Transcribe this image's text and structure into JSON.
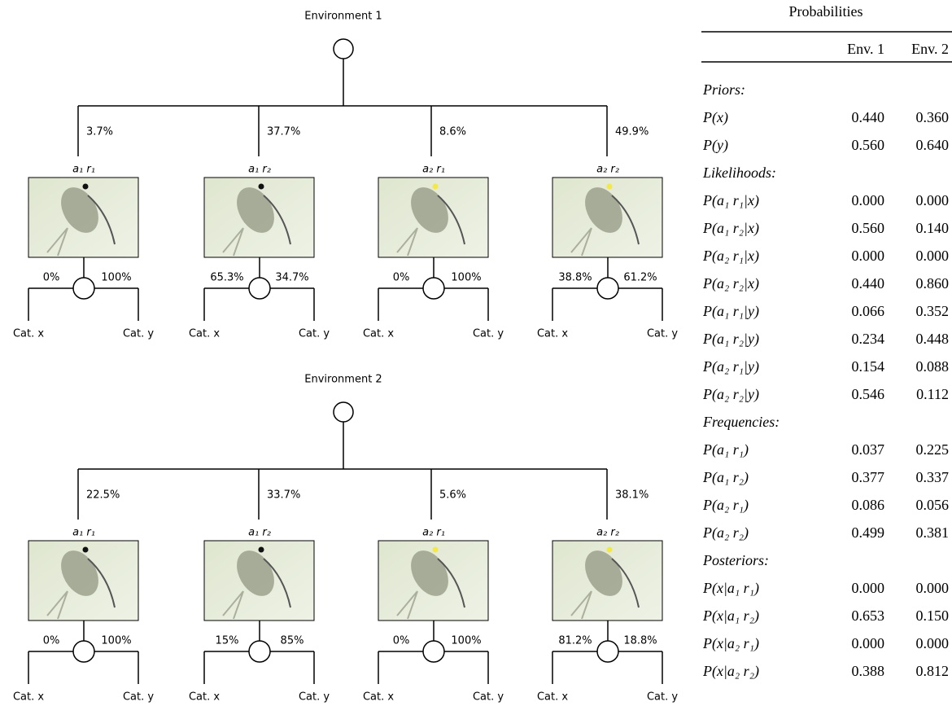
{
  "trees": [
    {
      "title": "Environment 1",
      "branches": [
        {
          "pct": "3.7%",
          "label": "a₁ r₁",
          "split": [
            "0%",
            "100%"
          ]
        },
        {
          "pct": "37.7%",
          "label": "a₁ r₂",
          "split": [
            "65.3%",
            "34.7%"
          ]
        },
        {
          "pct": "8.6%",
          "label": "a₂ r₁",
          "split": [
            "0%",
            "100%"
          ]
        },
        {
          "pct": "49.9%",
          "label": "a₂ r₂",
          "split": [
            "38.8%",
            "61.2%"
          ]
        }
      ]
    },
    {
      "title": "Environment 2",
      "branches": [
        {
          "pct": "22.5%",
          "label": "a₁ r₁",
          "split": [
            "0%",
            "100%"
          ]
        },
        {
          "pct": "33.7%",
          "label": "a₁ r₂",
          "split": [
            "15%",
            "85%"
          ]
        },
        {
          "pct": "5.6%",
          "label": "a₂ r₁",
          "split": [
            "0%",
            "100%"
          ]
        },
        {
          "pct": "38.1%",
          "label": "a₂ r₂",
          "split": [
            "81.2%",
            "18.8%"
          ]
        }
      ]
    }
  ],
  "outcomes": [
    "Cat. x",
    "Cat. y"
  ],
  "table": {
    "title": "Probabilities",
    "columns": [
      "Env. 1",
      "Env. 2"
    ],
    "sections": [
      {
        "heading": "Priors:",
        "rows": [
          {
            "label": "P(x)",
            "values": [
              "0.440",
              "0.360"
            ]
          },
          {
            "label": "P(y)",
            "values": [
              "0.560",
              "0.640"
            ]
          }
        ]
      },
      {
        "heading": "Likelihoods:",
        "rows": [
          {
            "label": "P(a₁ r₁|x)",
            "values": [
              "0.000",
              "0.000"
            ]
          },
          {
            "label": "P(a₁ r₂|x)",
            "values": [
              "0.560",
              "0.140"
            ]
          },
          {
            "label": "P(a₂ r₁|x)",
            "values": [
              "0.000",
              "0.000"
            ]
          },
          {
            "label": "P(a₂ r₂|x)",
            "values": [
              "0.440",
              "0.860"
            ]
          },
          {
            "label": "P(a₁ r₁|y)",
            "values": [
              "0.066",
              "0.352"
            ]
          },
          {
            "label": "P(a₁ r₂|y)",
            "values": [
              "0.234",
              "0.448"
            ]
          },
          {
            "label": "P(a₂ r₁|y)",
            "values": [
              "0.154",
              "0.088"
            ]
          },
          {
            "label": "P(a₂ r₂|y)",
            "values": [
              "0.546",
              "0.112"
            ]
          }
        ]
      },
      {
        "heading": "Frequencies:",
        "rows": [
          {
            "label": "P(a₁ r₁)",
            "values": [
              "0.037",
              "0.225"
            ]
          },
          {
            "label": "P(a₁ r₂)",
            "values": [
              "0.377",
              "0.337"
            ]
          },
          {
            "label": "P(a₂ r₁)",
            "values": [
              "0.086",
              "0.056"
            ]
          },
          {
            "label": "P(a₂ r₂)",
            "values": [
              "0.499",
              "0.381"
            ]
          }
        ]
      },
      {
        "heading": "Posteriors:",
        "rows": [
          {
            "label": "P(x|a₁ r₁)",
            "values": [
              "0.000",
              "0.000"
            ]
          },
          {
            "label": "P(x|a₁ r₂)",
            "values": [
              "0.653",
              "0.150"
            ]
          },
          {
            "label": "P(x|a₂ r₁)",
            "values": [
              "0.000",
              "0.000"
            ]
          },
          {
            "label": "P(x|a₂ r₂)",
            "values": [
              "0.388",
              "0.812"
            ]
          }
        ]
      }
    ]
  }
}
